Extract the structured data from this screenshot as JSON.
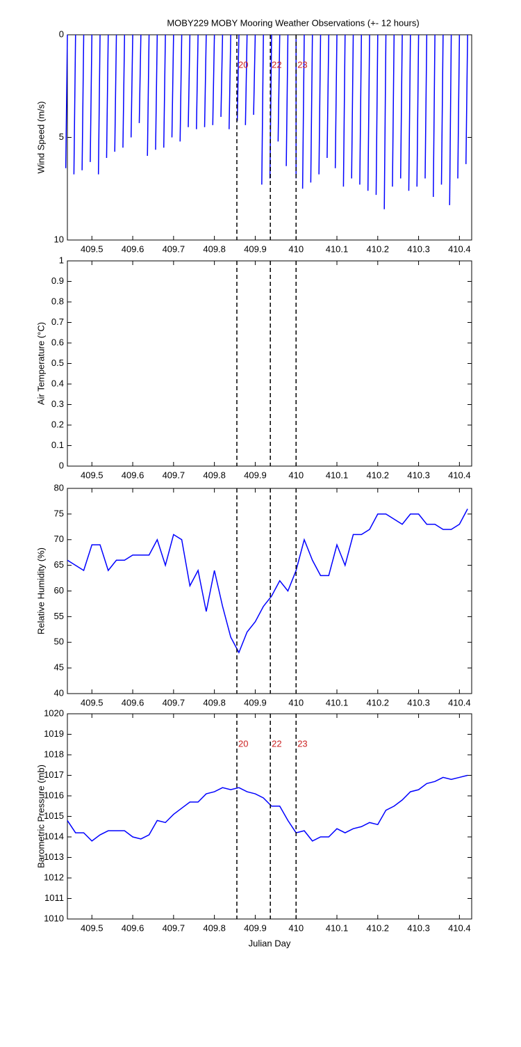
{
  "chart_data": [
    {
      "type": "stick",
      "title": "MOBY229 MOBY Mooring Weather Observations (+- 12 hours)",
      "ylabel": "Wind Speed (m/s)",
      "xlim": [
        409.44,
        410.43
      ],
      "xticks": [
        409.5,
        409.6,
        409.7,
        409.8,
        409.9,
        410,
        410.1,
        410.2,
        410.3,
        410.4
      ],
      "ylim": [
        0,
        10
      ],
      "yticks": [
        0,
        5,
        10
      ],
      "yreverse": true,
      "color": "#0000ff",
      "x": [
        409.44,
        409.46,
        409.48,
        409.5,
        409.52,
        409.54,
        409.56,
        409.58,
        409.6,
        409.62,
        409.64,
        409.66,
        409.68,
        409.7,
        409.72,
        409.74,
        409.76,
        409.78,
        409.8,
        409.82,
        409.84,
        409.86,
        409.88,
        409.9,
        409.92,
        409.94,
        409.96,
        409.98,
        410,
        410.02,
        410.04,
        410.06,
        410.08,
        410.1,
        410.12,
        410.14,
        410.16,
        410.18,
        410.2,
        410.22,
        410.24,
        410.26,
        410.28,
        410.3,
        410.32,
        410.34,
        410.36,
        410.38,
        410.4,
        410.42
      ],
      "end_x": [
        409.436,
        409.456,
        409.476,
        409.496,
        409.516,
        409.536,
        409.556,
        409.576,
        409.596,
        409.616,
        409.636,
        409.656,
        409.676,
        409.696,
        409.716,
        409.736,
        409.756,
        409.776,
        409.796,
        409.816,
        409.836,
        409.856,
        409.876,
        409.896,
        409.916,
        409.936,
        409.956,
        409.976,
        410,
        410.016,
        410.036,
        410.056,
        410.076,
        410.096,
        410.116,
        410.136,
        410.156,
        410.176,
        410.196,
        410.216,
        410.236,
        410.256,
        410.276,
        410.296,
        410.316,
        410.336,
        410.356,
        410.376,
        410.396,
        410.416
      ],
      "values": [
        6.5,
        6.8,
        6.6,
        6.2,
        6.8,
        6.0,
        5.7,
        5.5,
        5.0,
        4.3,
        5.9,
        5.6,
        5.5,
        5.0,
        5.2,
        4.5,
        4.6,
        4.5,
        4.4,
        4.0,
        4.6,
        4.2,
        4.4,
        3.9,
        7.3,
        7.0,
        5.2,
        6.4,
        7.0,
        7.5,
        7.2,
        6.8,
        6.0,
        6.5,
        7.4,
        7.0,
        7.3,
        7.6,
        7.8,
        8.5,
        7.4,
        7.0,
        7.6,
        7.4,
        7.0,
        7.9,
        7.3,
        8.3,
        7.0,
        6.3
      ],
      "markers": [
        {
          "x": 409.855,
          "label": "20"
        },
        {
          "x": 409.937,
          "label": "22"
        },
        {
          "x": 410.0,
          "label": "23"
        }
      ]
    },
    {
      "type": "line",
      "ylabel": "Air Temperature (°C)",
      "xlim": [
        409.44,
        410.43
      ],
      "xticks": [
        409.5,
        409.6,
        409.7,
        409.8,
        409.9,
        410,
        410.1,
        410.2,
        410.3,
        410.4
      ],
      "ylim": [
        0,
        1
      ],
      "yticks": [
        0,
        0.1,
        0.2,
        0.3,
        0.4,
        0.5,
        0.6,
        0.7,
        0.8,
        0.9,
        1
      ],
      "markers": [
        {
          "x": 409.855
        },
        {
          "x": 409.937
        },
        {
          "x": 410.0
        }
      ]
    },
    {
      "type": "line",
      "ylabel": "Relative Humidity (%)",
      "xlim": [
        409.44,
        410.43
      ],
      "xticks": [
        409.5,
        409.6,
        409.7,
        409.8,
        409.9,
        410,
        410.1,
        410.2,
        410.3,
        410.4
      ],
      "ylim": [
        40,
        80
      ],
      "yticks": [
        40,
        45,
        50,
        55,
        60,
        65,
        70,
        75,
        80
      ],
      "color": "#0000ff",
      "x": [
        409.44,
        409.46,
        409.48,
        409.5,
        409.52,
        409.54,
        409.56,
        409.58,
        409.6,
        409.62,
        409.64,
        409.66,
        409.68,
        409.7,
        409.72,
        409.74,
        409.76,
        409.78,
        409.8,
        409.82,
        409.84,
        409.86,
        409.88,
        409.9,
        409.92,
        409.94,
        409.96,
        409.98,
        410,
        410.02,
        410.04,
        410.06,
        410.08,
        410.1,
        410.12,
        410.14,
        410.16,
        410.18,
        410.2,
        410.22,
        410.24,
        410.26,
        410.28,
        410.3,
        410.32,
        410.34,
        410.36,
        410.38,
        410.4,
        410.42
      ],
      "values": [
        66,
        65,
        64,
        69,
        69,
        64,
        66,
        66,
        67,
        67,
        67,
        70,
        65,
        71,
        70,
        61,
        64,
        56,
        64,
        57,
        51,
        48,
        52,
        54,
        57,
        59,
        62,
        60,
        64,
        70,
        66,
        63,
        63,
        69,
        65,
        71,
        71,
        72,
        75,
        75,
        74,
        73,
        75,
        75,
        73,
        73,
        72,
        72,
        73,
        76
      ],
      "markers": [
        {
          "x": 409.855
        },
        {
          "x": 409.937
        },
        {
          "x": 410.0
        }
      ]
    },
    {
      "type": "line",
      "ylabel": "Barometric Pressure (mb)",
      "xlabel": "Julian Day",
      "xlim": [
        409.44,
        410.43
      ],
      "xticks": [
        409.5,
        409.6,
        409.7,
        409.8,
        409.9,
        410,
        410.1,
        410.2,
        410.3,
        410.4
      ],
      "ylim": [
        1010,
        1020
      ],
      "yticks": [
        1010,
        1011,
        1012,
        1013,
        1014,
        1015,
        1016,
        1017,
        1018,
        1019,
        1020
      ],
      "color": "#0000ff",
      "x": [
        409.44,
        409.46,
        409.48,
        409.5,
        409.52,
        409.54,
        409.56,
        409.58,
        409.6,
        409.62,
        409.64,
        409.66,
        409.68,
        409.7,
        409.72,
        409.74,
        409.76,
        409.78,
        409.8,
        409.82,
        409.84,
        409.86,
        409.88,
        409.9,
        409.92,
        409.94,
        409.96,
        409.98,
        410,
        410.02,
        410.04,
        410.06,
        410.08,
        410.1,
        410.12,
        410.14,
        410.16,
        410.18,
        410.2,
        410.22,
        410.24,
        410.26,
        410.28,
        410.3,
        410.32,
        410.34,
        410.36,
        410.38,
        410.4,
        410.42
      ],
      "values": [
        1014.8,
        1014.2,
        1014.2,
        1013.8,
        1014.1,
        1014.3,
        1014.3,
        1014.3,
        1014.0,
        1013.9,
        1014.1,
        1014.8,
        1014.7,
        1015.1,
        1015.4,
        1015.7,
        1015.7,
        1016.1,
        1016.2,
        1016.4,
        1016.3,
        1016.4,
        1016.2,
        1016.1,
        1015.9,
        1015.5,
        1015.5,
        1014.8,
        1014.2,
        1014.3,
        1013.8,
        1014.0,
        1014.0,
        1014.4,
        1014.2,
        1014.4,
        1014.5,
        1014.7,
        1014.6,
        1015.3,
        1015.5,
        1015.8,
        1016.2,
        1016.3,
        1016.6,
        1016.7,
        1016.9,
        1016.8,
        1016.9,
        1017.0
      ],
      "markers": [
        {
          "x": 409.855,
          "label": "20"
        },
        {
          "x": 409.937,
          "label": "22"
        },
        {
          "x": 410.0,
          "label": "23"
        }
      ]
    }
  ]
}
